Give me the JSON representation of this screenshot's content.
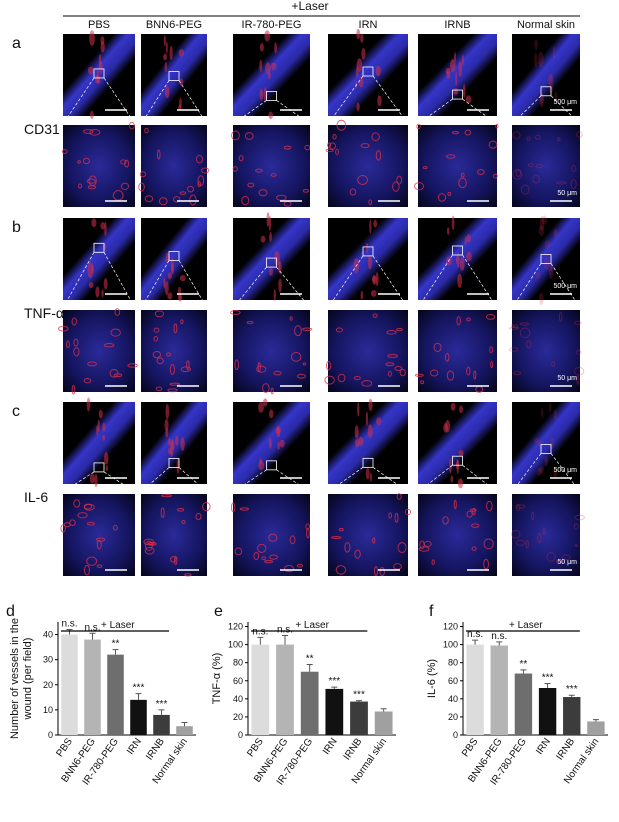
{
  "header": {
    "laser": "+Laser",
    "columns": [
      "PBS",
      "BNN6-PEG",
      "IR-780-PEG",
      "IRN",
      "IRNB",
      "Normal skin"
    ]
  },
  "rows": [
    {
      "letter": "a",
      "label": "CD31",
      "scale_top": "500 μm",
      "scale_bottom": "50 μm"
    },
    {
      "letter": "b",
      "label": "TNF-α",
      "scale_top": "500 μm",
      "scale_bottom": "50 μm"
    },
    {
      "letter": "c",
      "label": "IL-6",
      "scale_top": "500 μm",
      "scale_bottom": "50 μm"
    }
  ],
  "chart_data": [
    {
      "type": "bar",
      "panel": "d",
      "ylabel": [
        "Number of vessels in the",
        "wound (per field)"
      ],
      "bracket_label": "+ Laser",
      "categories": [
        "PBS",
        "BNN6-PEG",
        "IR-780-PEG",
        "IRN",
        "IRNB",
        "Normal skin"
      ],
      "values": [
        40,
        38,
        32,
        14,
        8,
        3.5
      ],
      "errors": [
        2,
        2.5,
        2,
        2.5,
        2,
        1.5
      ],
      "annotations": [
        "n.s.",
        "n.s.",
        "**",
        "***",
        "***"
      ],
      "colors": [
        "#dcdcdc",
        "#b4b4b4",
        "#6e6e6e",
        "#111111",
        "#3c3c3c",
        "#a0a0a0"
      ],
      "ylim": [
        0,
        45
      ],
      "yticks": [
        0,
        10,
        20,
        30,
        40
      ]
    },
    {
      "type": "bar",
      "panel": "e",
      "ylabel": [
        "TNF-α (%)"
      ],
      "bracket_label": "+ Laser",
      "categories": [
        "PBS",
        "BNN6-PEG",
        "IR-780-PEG",
        "IRN",
        "IRNB",
        "Normal skin"
      ],
      "values": [
        100,
        100,
        70,
        51,
        37,
        26
      ],
      "errors": [
        8,
        10,
        8,
        2,
        1,
        3
      ],
      "annotations": [
        "n.s.",
        "n.s.",
        "**",
        "***",
        "***"
      ],
      "colors": [
        "#dcdcdc",
        "#b4b4b4",
        "#6e6e6e",
        "#111111",
        "#3c3c3c",
        "#a0a0a0"
      ],
      "ylim": [
        0,
        125
      ],
      "yticks": [
        0,
        20,
        40,
        60,
        80,
        100,
        120
      ]
    },
    {
      "type": "bar",
      "panel": "f",
      "ylabel": [
        "IL-6 (%)"
      ],
      "bracket_label": "+ Laser",
      "categories": [
        "PBS",
        "BNN6-PEG",
        "IR-780-PEG",
        "IRN",
        "IRNB",
        "Normal skin"
      ],
      "values": [
        100,
        99,
        68,
        52,
        42,
        15
      ],
      "errors": [
        5,
        4,
        4,
        5,
        2,
        2
      ],
      "annotations": [
        "n.s.",
        "n.s.",
        "**",
        "***",
        "***"
      ],
      "colors": [
        "#dcdcdc",
        "#b4b4b4",
        "#6e6e6e",
        "#111111",
        "#3c3c3c",
        "#a0a0a0"
      ],
      "ylim": [
        0,
        125
      ],
      "yticks": [
        0,
        20,
        40,
        60,
        80,
        100,
        120
      ]
    }
  ]
}
